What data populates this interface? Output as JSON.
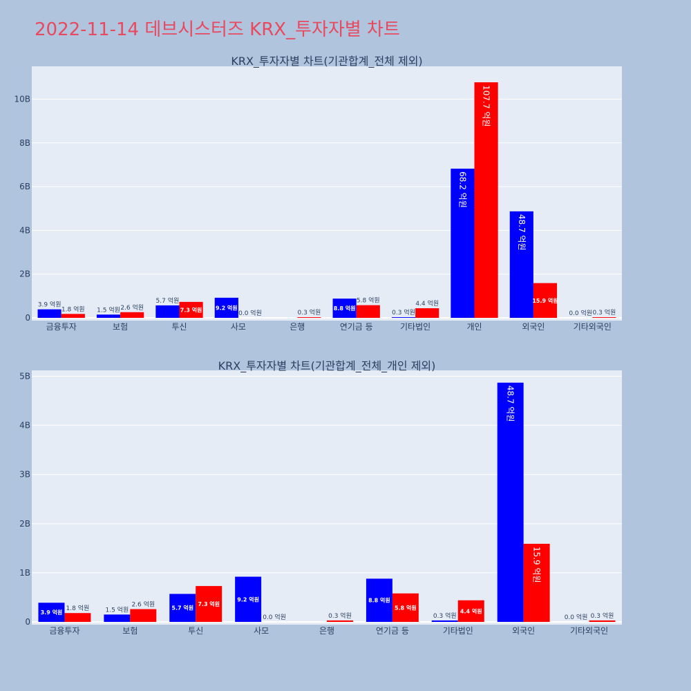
{
  "title": "2022-11-14 데브시스터즈 KRX_투자자별 차트",
  "colors": {
    "title": "#e8495f",
    "background": "#b0c4de",
    "plot_bg": "#e5ecf6",
    "buy": "#0000ff",
    "sell": "#ff0000"
  },
  "chart_data": [
    {
      "type": "bar",
      "title": "KRX_투자자별 차트(기관합계_전체 제외)",
      "categories": [
        "금융투자",
        "보험",
        "투신",
        "사모",
        "은행",
        "연기금 등",
        "기타법인",
        "개인",
        "외국인",
        "기타외국인"
      ],
      "series": [
        {
          "color": "#0000ff",
          "values": [
            390000000,
            150000000,
            570000000,
            920000000,
            0,
            880000000,
            30000000,
            6820000000,
            4870000000,
            0
          ],
          "labels": [
            "3.9 억원",
            "1.5 억원",
            "5.7 억원",
            "9.2 억원",
            "",
            "8.8 억원",
            "0.3 억원",
            "68.2 억원",
            "48.7 억원",
            "0.0 억원"
          ]
        },
        {
          "color": "#ff0000",
          "values": [
            180000000,
            260000000,
            730000000,
            0,
            30000000,
            580000000,
            440000000,
            10770000000,
            1590000000,
            30000000
          ],
          "labels": [
            "1.8 억원",
            "2.6 억원",
            "7.3 억원",
            "0.0 억원",
            "0.3 억원",
            "5.8 억원",
            "4.4 억원",
            "107.7 억원",
            "15.9 억원",
            "0.3 억원"
          ]
        }
      ],
      "ylim": [
        0,
        11500000000
      ],
      "ticks": [
        0,
        2000000000,
        4000000000,
        6000000000,
        8000000000,
        10000000000
      ],
      "tick_labels": [
        "0",
        "2B",
        "4B",
        "6B",
        "8B",
        "10B"
      ],
      "grid": true
    },
    {
      "type": "bar",
      "title": "KRX_투자자별 차트(기관합계_전체_개인 제외)",
      "categories": [
        "금융투자",
        "보험",
        "투신",
        "사모",
        "은행",
        "연기금 등",
        "기타법인",
        "외국인",
        "기타외국인"
      ],
      "series": [
        {
          "color": "#0000ff",
          "values": [
            390000000,
            150000000,
            570000000,
            920000000,
            0,
            880000000,
            30000000,
            4870000000,
            0
          ],
          "labels": [
            "3.9 억원",
            "1.5 억원",
            "5.7 억원",
            "9.2 억원",
            "",
            "8.8 억원",
            "0.3 억원",
            "48.7 억원",
            "0.0 억원"
          ]
        },
        {
          "color": "#ff0000",
          "values": [
            180000000,
            260000000,
            730000000,
            0,
            30000000,
            580000000,
            440000000,
            1590000000,
            30000000
          ],
          "labels": [
            "1.8 억원",
            "2.6 억원",
            "7.3 억원",
            "0.0 억원",
            "0.3 억원",
            "5.8 억원",
            "4.4 억원",
            "15.9 억원",
            "0.3 억원"
          ]
        }
      ],
      "ylim": [
        0,
        5120000000
      ],
      "ticks": [
        0,
        1000000000,
        2000000000,
        3000000000,
        4000000000,
        5000000000
      ],
      "tick_labels": [
        "0",
        "1B",
        "2B",
        "3B",
        "4B",
        "5B"
      ],
      "grid": true
    }
  ]
}
